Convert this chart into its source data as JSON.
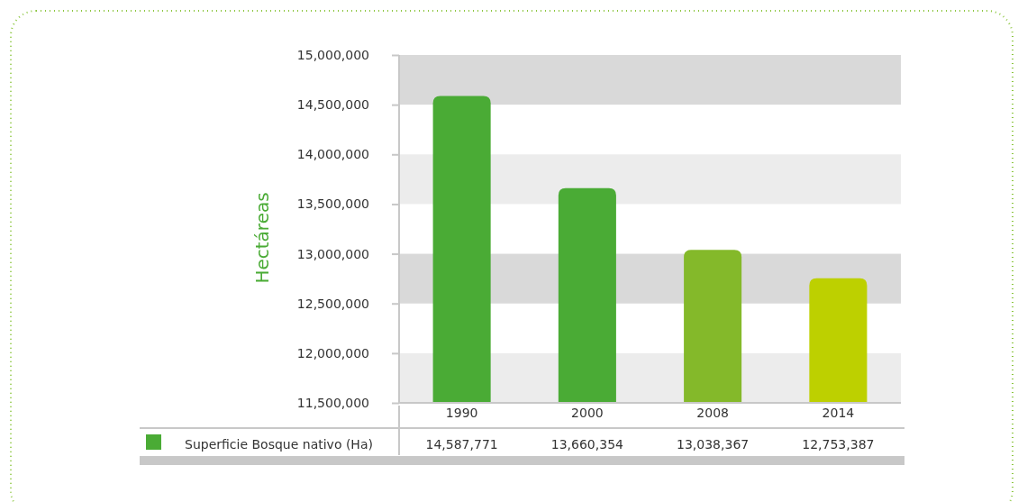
{
  "chart_data": {
    "type": "bar",
    "ylabel": "Hectáreas",
    "categories": [
      "1990",
      "2000",
      "2008",
      "2014"
    ],
    "series": [
      {
        "name": "Superficie Bosque nativo (Ha)",
        "color": "#4aab35",
        "colors": [
          "#4aab35",
          "#4aab35",
          "#84b92a",
          "#bdd000"
        ],
        "values": [
          14587771,
          13660354,
          13038367,
          12753387
        ],
        "value_labels": [
          "14,587,771",
          "13,660,354",
          "13,038,367",
          "12,753,387"
        ]
      }
    ],
    "ylim": [
      11500000,
      15000000
    ],
    "yticks": [
      {
        "value": 11500000,
        "label": "11,500,000"
      },
      {
        "value": 12000000,
        "label": "12,000,000"
      },
      {
        "value": 12500000,
        "label": "12,500,000"
      },
      {
        "value": 13000000,
        "label": "13,000,000"
      },
      {
        "value": 13500000,
        "label": "13,500,000"
      },
      {
        "value": 14000000,
        "label": "14,000,000"
      },
      {
        "value": 14500000,
        "label": "14,500,000"
      },
      {
        "value": 15000000,
        "label": "15,000,000"
      }
    ],
    "legend": "bottom"
  }
}
